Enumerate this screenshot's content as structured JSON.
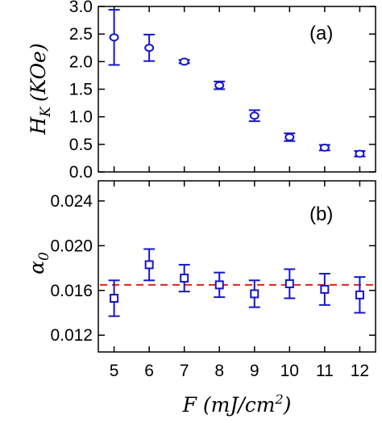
{
  "chart_data": [
    {
      "type": "scatter",
      "panel_label": "(a)",
      "ylabel": "H_K (KOe)",
      "ylabel_main": "H",
      "ylabel_sub": "K",
      "ylabel_rest": "(KOe)",
      "xlabel": "",
      "ylim": [
        0,
        3.0
      ],
      "yticks": [
        "0.0",
        "0.5",
        "1.0",
        "1.5",
        "2.0",
        "2.5",
        "3.0"
      ],
      "marker": "circle",
      "color": "#1515c8",
      "grid": false,
      "x": [
        5,
        6,
        7,
        8,
        9,
        10,
        11,
        12
      ],
      "y": [
        2.44,
        2.25,
        2.0,
        1.57,
        1.02,
        0.63,
        0.44,
        0.33
      ],
      "yerr": [
        0.5,
        0.24,
        0.03,
        0.07,
        0.1,
        0.07,
        0.05,
        0.05
      ]
    },
    {
      "type": "scatter",
      "panel_label": "(b)",
      "ylabel": "α_0",
      "ylabel_main": "α",
      "ylabel_sub": "0",
      "xlabel": "F (mJ/cm²)",
      "xlabel_main": "F (mJ/cm",
      "xlabel_sup": "2",
      "xlabel_end": ")",
      "ylim": [
        0.0105,
        0.0258
      ],
      "yticks": [
        "0.012",
        "0.016",
        "0.020",
        "0.024"
      ],
      "xticks": [
        "5",
        "6",
        "7",
        "8",
        "9",
        "10",
        "11",
        "12"
      ],
      "marker": "square",
      "color": "#1515c8",
      "grid": false,
      "x": [
        5,
        6,
        7,
        8,
        9,
        10,
        11,
        12
      ],
      "y": [
        0.0153,
        0.0183,
        0.0171,
        0.0165,
        0.0157,
        0.0166,
        0.0161,
        0.0156
      ],
      "yerr": [
        0.0016,
        0.0014,
        0.0012,
        0.0011,
        0.0012,
        0.0013,
        0.0014,
        0.0016
      ],
      "reference_line": {
        "y": 0.0165,
        "color": "#e0231c",
        "style": "dashed"
      }
    }
  ]
}
